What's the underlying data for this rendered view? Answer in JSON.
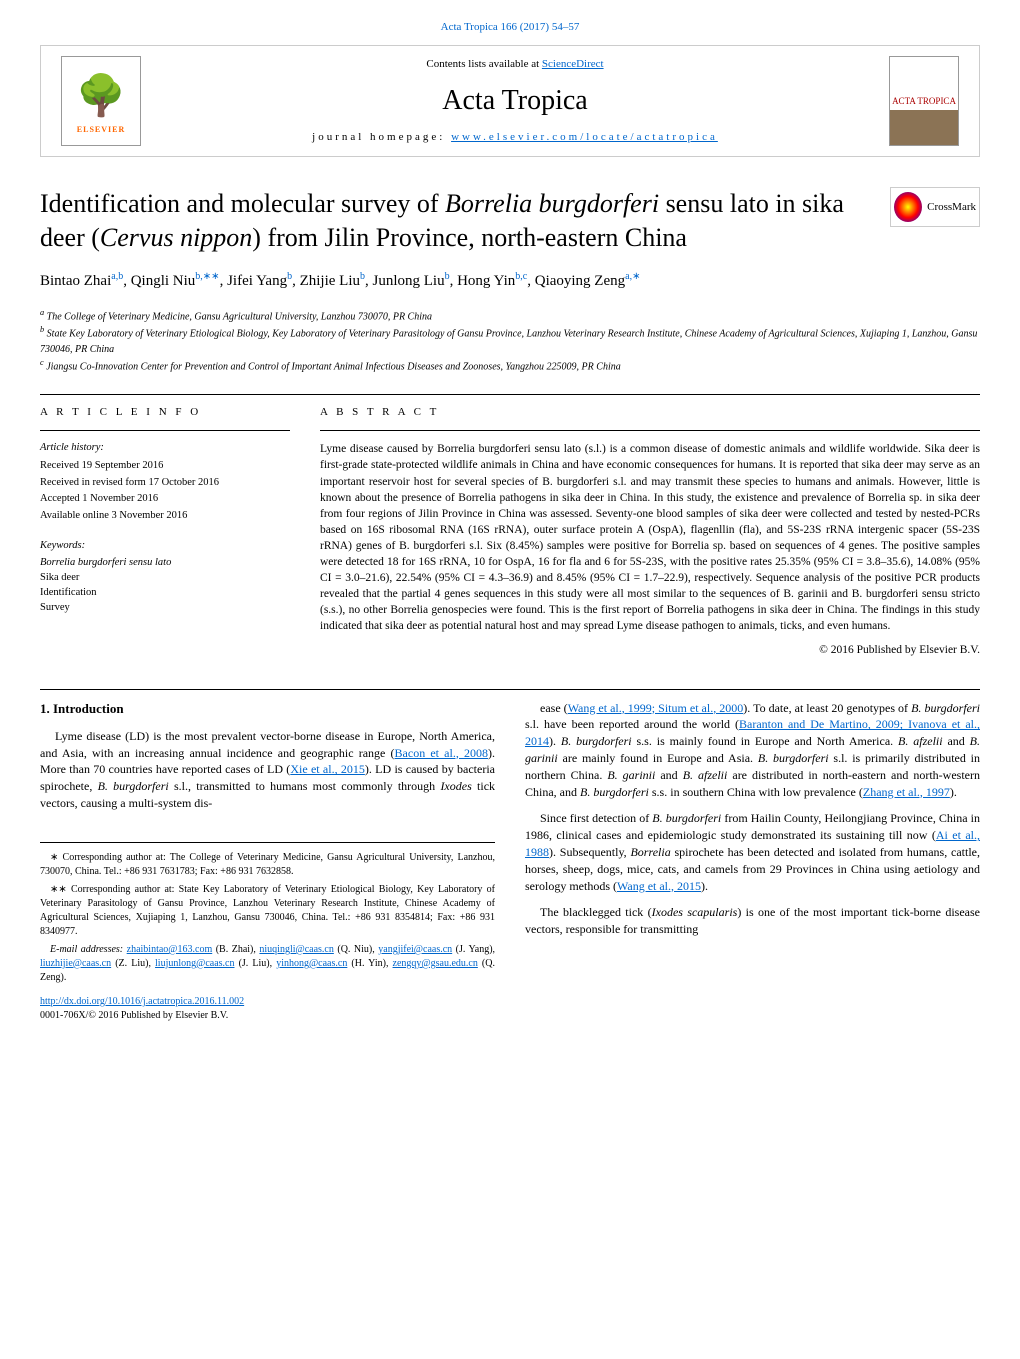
{
  "top_citation": "Acta Tropica 166 (2017) 54–57",
  "header": {
    "contents_label": "Contents lists available at ",
    "contents_link": "ScienceDirect",
    "journal_name": "Acta Tropica",
    "homepage_label": "journal homepage: ",
    "homepage_link": "www.elsevier.com/locate/actatropica",
    "elsevier_text": "ELSEVIER",
    "cover_text": "ACTA TROPICA"
  },
  "crossmark_label": "CrossMark",
  "title_parts": {
    "p1": "Identification and molecular survey of ",
    "p2": "Borrelia burgdorferi",
    "p3": " sensu lato in sika deer (",
    "p4": "Cervus nippon",
    "p5": ") from Jilin Province, north-eastern China"
  },
  "authors_html": "Bintao Zhai",
  "authors": [
    {
      "name": "Bintao Zhai",
      "sup": "a,b"
    },
    {
      "name": "Qingli Niu",
      "sup": "b,∗∗"
    },
    {
      "name": "Jifei Yang",
      "sup": "b"
    },
    {
      "name": "Zhijie Liu",
      "sup": "b"
    },
    {
      "name": "Junlong Liu",
      "sup": "b"
    },
    {
      "name": "Hong Yin",
      "sup": "b,c"
    },
    {
      "name": "Qiaoying Zeng",
      "sup": "a,∗"
    }
  ],
  "affiliations": [
    {
      "sup": "a",
      "text": "The College of Veterinary Medicine, Gansu Agricultural University, Lanzhou 730070, PR China"
    },
    {
      "sup": "b",
      "text": "State Key Laboratory of Veterinary Etiological Biology, Key Laboratory of Veterinary Parasitology of Gansu Province, Lanzhou Veterinary Research Institute, Chinese Academy of Agricultural Sciences, Xujiaping 1, Lanzhou, Gansu 730046, PR China"
    },
    {
      "sup": "c",
      "text": "Jiangsu Co-Innovation Center for Prevention and Control of Important Animal Infectious Diseases and Zoonoses, Yangzhou 225009, PR China"
    }
  ],
  "article_info": {
    "heading": "A R T I C L E   I N F O",
    "history_label": "Article history:",
    "history": [
      "Received 19 September 2016",
      "Received in revised form 17 October 2016",
      "Accepted 1 November 2016",
      "Available online 3 November 2016"
    ],
    "keywords_label": "Keywords:",
    "keywords": [
      "Borrelia burgdorferi sensu lato",
      "Sika deer",
      "Identification",
      "Survey"
    ]
  },
  "abstract": {
    "heading": "A B S T R A C T",
    "text": "Lyme disease caused by Borrelia burgdorferi sensu lato (s.l.) is a common disease of domestic animals and wildlife worldwide. Sika deer is first-grade state-protected wildlife animals in China and have economic consequences for humans. It is reported that sika deer may serve as an important reservoir host for several species of B. burgdorferi s.l. and may transmit these species to humans and animals. However, little is known about the presence of Borrelia pathogens in sika deer in China. In this study, the existence and prevalence of Borrelia sp. in sika deer from four regions of Jilin Province in China was assessed. Seventy-one blood samples of sika deer were collected and tested by nested-PCRs based on 16S ribosomal RNA (16S rRNA), outer surface protein A (OspA), flagenllin (fla), and 5S-23S rRNA intergenic spacer (5S-23S rRNA) genes of B. burgdorferi s.l. Six (8.45%) samples were positive for Borrelia sp. based on sequences of 4 genes. The positive samples were detected 18 for 16S rRNA, 10 for OspA, 16 for fla and 6 for 5S-23S, with the positive rates 25.35% (95% CI = 3.8–35.6), 14.08% (95% CI = 3.0–21.6), 22.54% (95% CI = 4.3–36.9) and 8.45% (95% CI = 1.7–22.9), respectively. Sequence analysis of the positive PCR products revealed that the partial 4 genes sequences in this study were all most similar to the sequences of B. garinii and B. burgdorferi sensu stricto (s.s.), no other Borrelia genospecies were found. This is the first report of Borrelia pathogens in sika deer in China. The findings in this study indicated that sika deer as potential natural host and may spread Lyme disease pathogen to animals, ticks, and even humans.",
    "copyright": "© 2016 Published by Elsevier B.V."
  },
  "section1": {
    "heading": "1. Introduction",
    "para1_pre": "Lyme disease (LD) is the most prevalent vector-borne disease in Europe, North America, and Asia, with an increasing annual incidence and geographic range (",
    "para1_link1": "Bacon et al., 2008",
    "para1_mid1": "). More than 70 countries have reported cases of LD (",
    "para1_link2": "Xie et al., 2015",
    "para1_mid2": "). LD is caused by bacteria spirochete, ",
    "para1_italic1": "B. burgdorferi",
    "para1_mid3": " s.l., transmitted to humans most commonly through ",
    "para1_italic2": "Ixodes",
    "para1_end": " tick vectors, causing a multi-system dis-"
  },
  "col2": {
    "para1_pre": "ease (",
    "para1_link1": "Wang et al., 1999; Situm et al., 2000",
    "para1_mid1": "). To date, at least 20 genotypes of ",
    "para1_i1": "B. burgdorferi",
    "para1_mid2": " s.l. have been reported around the world (",
    "para1_link2": "Baranton and De Martino, 2009; Ivanova et al., 2014",
    "para1_mid3": "). ",
    "para1_i2": "B. burgdorferi",
    "para1_mid4": " s.s. is mainly found in Europe and North America. ",
    "para1_i3": "B. afzelii",
    "para1_mid5": " and ",
    "para1_i4": "B. garinii",
    "para1_mid6": " are mainly found in Europe and Asia. ",
    "para1_i5": "B. burgdorferi",
    "para1_mid7": " s.l. is primarily distributed in northern China. ",
    "para1_i6": "B. garinii",
    "para1_mid8": " and ",
    "para1_i7": "B. afzelii",
    "para1_mid9": " are distributed in north-eastern and north-western China, and ",
    "para1_i8": "B. burgdorferi",
    "para1_mid10": " s.s. in southern China with low prevalence (",
    "para1_link3": "Zhang et al., 1997",
    "para1_end": ").",
    "para2_pre": "Since first detection of ",
    "para2_i1": "B. burgdorferi",
    "para2_mid1": " from Hailin County, Heilongjiang Province, China in 1986, clinical cases and epidemiologic study demonstrated its sustaining till now (",
    "para2_link1": "Ai et al., 1988",
    "para2_mid2": "). Subsequently, ",
    "para2_i2": "Borrelia",
    "para2_mid3": " spirochete has been detected and isolated from humans, cattle, horses, sheep, dogs, mice, cats, and camels from 29 Provinces in China using aetiology and serology methods (",
    "para2_link2": "Wang et al., 2015",
    "para2_end": ").",
    "para3_pre": "The blacklegged tick (",
    "para3_i1": "Ixodes scapularis",
    "para3_end": ") is one of the most important tick-borne disease vectors, responsible for transmitting"
  },
  "footnotes": {
    "c1": "∗ Corresponding author at: The College of Veterinary Medicine, Gansu Agricultural University, Lanzhou, 730070, China. Tel.: +86 931 7631783; Fax: +86 931 7632858.",
    "c2": "∗∗ Corresponding author at: State Key Laboratory of Veterinary Etiological Biology, Key Laboratory of Veterinary Parasitology of Gansu Province, Lanzhou Veterinary Research Institute, Chinese Academy of Agricultural Sciences, Xujiaping 1, Lanzhou, Gansu 730046, China. Tel.: +86 931 8354814; Fax: +86 931 8340977.",
    "email_label": "E-mail addresses: ",
    "emails": [
      {
        "addr": "zhaibintao@163.com",
        "who": " (B. Zhai), "
      },
      {
        "addr": "niuqingli@caas.cn",
        "who": " (Q. Niu), "
      },
      {
        "addr": "yangjifei@caas.cn",
        "who": " (J. Yang), "
      },
      {
        "addr": "liuzhijie@caas.cn",
        "who": " (Z. Liu), "
      },
      {
        "addr": "liujunlong@caas.cn",
        "who": " (J. Liu), "
      },
      {
        "addr": "yinhong@caas.cn",
        "who": " (H. Yin), "
      },
      {
        "addr": "zengqy@gsau.edu.cn",
        "who": " (Q. Zeng)."
      }
    ]
  },
  "doi": {
    "link": "http://dx.doi.org/10.1016/j.actatropica.2016.11.002",
    "issn": "0001-706X/© 2016 Published by Elsevier B.V."
  }
}
